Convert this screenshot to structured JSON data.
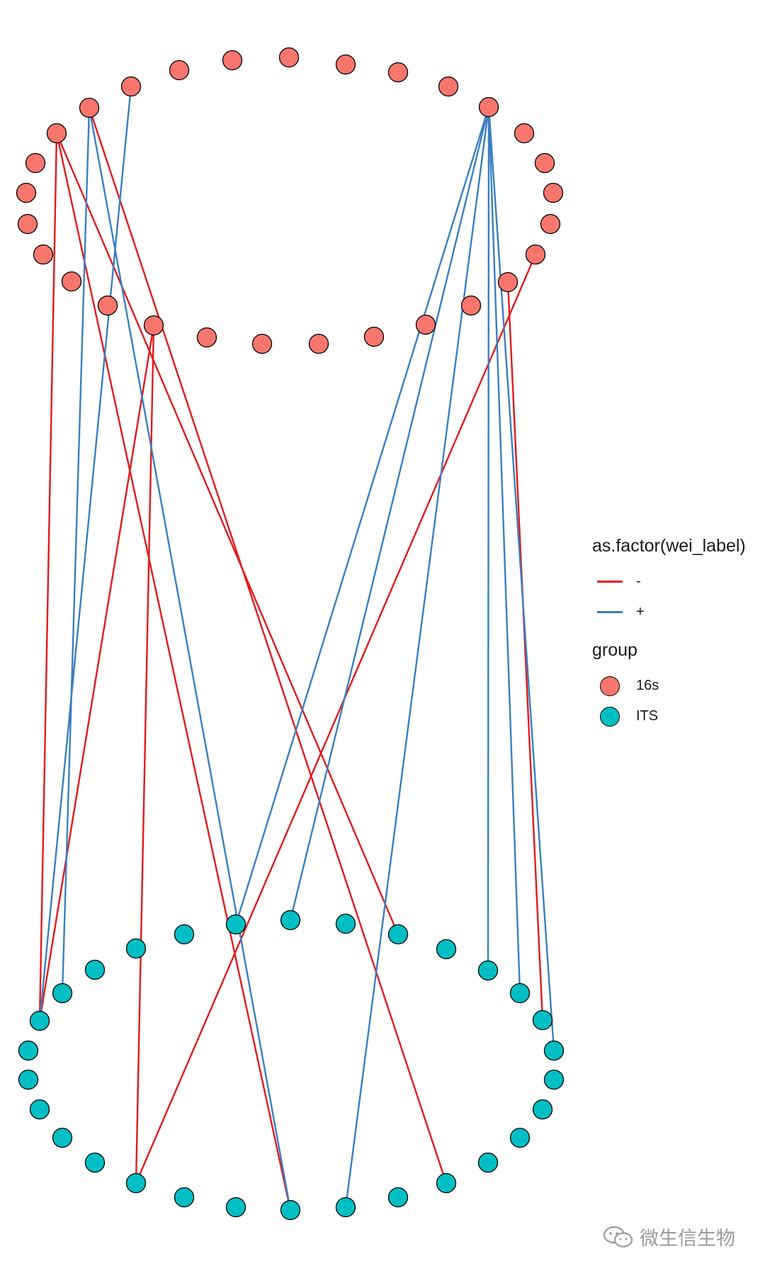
{
  "chart_data": {
    "type": "network",
    "edge_legend": {
      "title": "as.factor(wei_label)",
      "entries": [
        {
          "label": "-",
          "color": "#e31a1c"
        },
        {
          "label": "+",
          "color": "#3a7fc1"
        }
      ]
    },
    "node_legend": {
      "title": "group",
      "entries": [
        {
          "label": "16s",
          "color": "#f8766d"
        },
        {
          "label": "ITS",
          "color": "#00bfc4"
        }
      ]
    }
  },
  "watermark": {
    "text": "微生信生物",
    "icon": "wechat-icon"
  }
}
